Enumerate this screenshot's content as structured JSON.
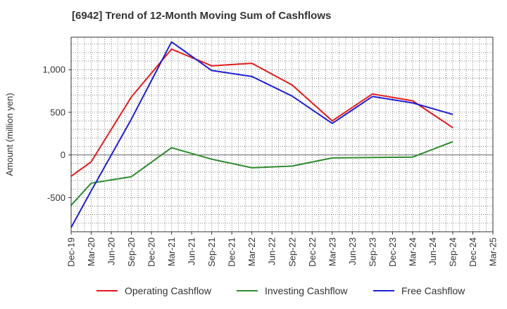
{
  "chart_data": {
    "type": "line",
    "title": "[6942]  Trend of 12-Month Moving Sum of Cashflows",
    "ylabel": "Amount (million yen)",
    "xlabel": "",
    "x": [
      "Dec-19",
      "Mar-20",
      "Jun-20",
      "Sep-20",
      "Dec-20",
      "Mar-21",
      "Jun-21",
      "Sep-21",
      "Dec-21",
      "Mar-22",
      "Jun-22",
      "Sep-22",
      "Dec-22",
      "Mar-23",
      "Jun-23",
      "Sep-23",
      "Dec-23",
      "Mar-24",
      "Jun-24",
      "Sep-24",
      "Dec-24",
      "Mar-25"
    ],
    "ylim": [
      -900,
      1380
    ],
    "yticks": [
      -500,
      0,
      500,
      1000
    ],
    "ytick_labels": [
      "-500",
      "0",
      "500",
      "1,000"
    ],
    "grid": true,
    "legend": "bottom",
    "series": [
      {
        "name": "Operating Cashflow",
        "color": "#e31a1c",
        "points": [
          [
            "Dec-19",
            -250
          ],
          [
            "Mar-20",
            -80
          ],
          [
            "Sep-20",
            680
          ],
          [
            "Mar-21",
            1240
          ],
          [
            "Sep-21",
            1045
          ],
          [
            "Mar-22",
            1075
          ],
          [
            "Sep-22",
            820
          ],
          [
            "Mar-23",
            400
          ],
          [
            "Sep-23",
            715
          ],
          [
            "Mar-24",
            635
          ],
          [
            "Sep-24",
            320
          ]
        ]
      },
      {
        "name": "Investing Cashflow",
        "color": "#2e8b2e",
        "points": [
          [
            "Dec-19",
            -590
          ],
          [
            "Mar-20",
            -330
          ],
          [
            "Sep-20",
            -255
          ],
          [
            "Mar-21",
            85
          ],
          [
            "Sep-21",
            -50
          ],
          [
            "Mar-22",
            -150
          ],
          [
            "Sep-22",
            -130
          ],
          [
            "Mar-23",
            -35
          ],
          [
            "Sep-23",
            -30
          ],
          [
            "Mar-24",
            -25
          ],
          [
            "Sep-24",
            155
          ]
        ]
      },
      {
        "name": "Free Cashflow",
        "color": "#1f1fd6",
        "points": [
          [
            "Dec-19",
            -850
          ],
          [
            "Mar-20",
            -420
          ],
          [
            "Sep-20",
            420
          ],
          [
            "Mar-21",
            1325
          ],
          [
            "Sep-21",
            990
          ],
          [
            "Mar-22",
            920
          ],
          [
            "Sep-22",
            690
          ],
          [
            "Mar-23",
            370
          ],
          [
            "Sep-23",
            685
          ],
          [
            "Mar-24",
            610
          ],
          [
            "Sep-24",
            475
          ]
        ]
      }
    ]
  }
}
